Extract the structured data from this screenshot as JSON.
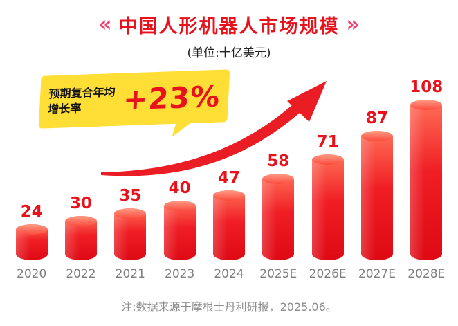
{
  "header": {
    "deco_left": "«",
    "deco_right": "»",
    "title": "中国人形机器人市场规模",
    "subtitle": "(单位:十亿美元)"
  },
  "callout": {
    "label_line1": "预期复合年均",
    "label_line2": "增长率",
    "value": "+23%"
  },
  "footer": {
    "note": "注:数据来源于摩根士丹利研报，2025.06。"
  },
  "chart_data": {
    "type": "bar",
    "title": "中国人形机器人市场规模",
    "unit_label": "(单位:十亿美元)",
    "categories": [
      "2020",
      "2022",
      "2021",
      "2023",
      "2024",
      "2025E",
      "2026E",
      "2027E",
      "2028E"
    ],
    "values": [
      24,
      30,
      35,
      40,
      47,
      58,
      71,
      87,
      108
    ],
    "annotation": "预期复合年均增长率 +23%",
    "source_note": "注:数据来源于摩根士丹利研报，2025.06。",
    "ylim": [
      0,
      120
    ],
    "grid": false,
    "legend": "none"
  },
  "colors": {
    "accent_red": "#e8121c",
    "deco_pink": "#f4436f",
    "bar_top": "#ff6f58",
    "bar_bottom": "#de0914",
    "callout_yellow": "#ffdf35",
    "axis_gray": "#7f7f7f",
    "note_gray": "#8c8c8c"
  }
}
